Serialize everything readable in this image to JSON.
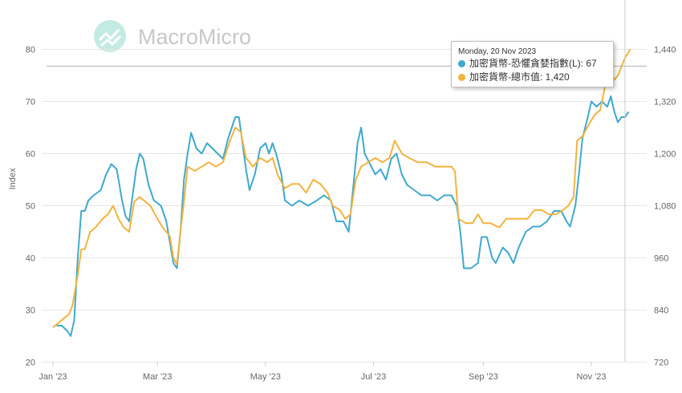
{
  "watermark": {
    "brand": "MacroMicro",
    "logo_icon": "macromicro-logo-icon"
  },
  "colors": {
    "fear_greed": "#3fa9cf",
    "market_cap": "#f2b33d",
    "grid": "#e6e6e6",
    "crosshair": "#cccccc",
    "logo": "#b9e6dd"
  },
  "tooltip": {
    "date": "Monday, 20 Nov 2023",
    "rows": [
      {
        "label": "加密貨幣-恐懼貪婪指數(L): 67",
        "color": "#3fa9cf"
      },
      {
        "label": "加密貨幣-總市值: 1,420",
        "color": "#f2b33d"
      }
    ]
  },
  "chart_data": {
    "type": "line",
    "title": "",
    "xlabel": "",
    "ylabel": "Index",
    "x_range": [
      "2023-01-01",
      "2023-11-23"
    ],
    "x_ticks": [
      {
        "date": "2023-01-01",
        "label": "Jan '23"
      },
      {
        "date": "2023-03-01",
        "label": "Mar '23"
      },
      {
        "date": "2023-05-01",
        "label": "May '23"
      },
      {
        "date": "2023-07-01",
        "label": "Jul '23"
      },
      {
        "date": "2023-09-01",
        "label": "Sep '23"
      },
      {
        "date": "2023-11-01",
        "label": "Nov '23"
      }
    ],
    "y_left": {
      "min": 20,
      "max": 80,
      "ticks": [
        20,
        30,
        40,
        50,
        60,
        70,
        80
      ]
    },
    "y_right": {
      "min": 720,
      "max": 1440,
      "ticks": [
        720,
        840,
        960,
        1080,
        1200,
        1320,
        1440
      ]
    },
    "grid": true,
    "crosshair_date": "2023-11-20",
    "crosshair_value": 1420,
    "series": [
      {
        "name": "加密貨幣-恐懼貪婪指數(L)",
        "axis": "left",
        "color": "#3fa9cf",
        "points": [
          [
            "2023-01-03",
            27
          ],
          [
            "2023-01-06",
            27
          ],
          [
            "2023-01-09",
            26
          ],
          [
            "2023-01-11",
            25
          ],
          [
            "2023-01-13",
            28
          ],
          [
            "2023-01-15",
            40
          ],
          [
            "2023-01-17",
            49
          ],
          [
            "2023-01-19",
            49
          ],
          [
            "2023-01-21",
            51
          ],
          [
            "2023-01-24",
            52
          ],
          [
            "2023-01-28",
            53
          ],
          [
            "2023-01-31",
            56
          ],
          [
            "2023-02-03",
            58
          ],
          [
            "2023-02-06",
            57
          ],
          [
            "2023-02-09",
            51
          ],
          [
            "2023-02-11",
            48
          ],
          [
            "2023-02-13",
            47
          ],
          [
            "2023-02-15",
            52
          ],
          [
            "2023-02-17",
            57
          ],
          [
            "2023-02-19",
            60
          ],
          [
            "2023-02-21",
            59
          ],
          [
            "2023-02-24",
            54
          ],
          [
            "2023-02-27",
            51
          ],
          [
            "2023-03-03",
            50
          ],
          [
            "2023-03-06",
            47
          ],
          [
            "2023-03-08",
            43
          ],
          [
            "2023-03-10",
            39
          ],
          [
            "2023-03-12",
            38
          ],
          [
            "2023-03-14",
            45
          ],
          [
            "2023-03-16",
            55
          ],
          [
            "2023-03-18",
            60
          ],
          [
            "2023-03-20",
            64
          ],
          [
            "2023-03-23",
            61
          ],
          [
            "2023-03-26",
            60
          ],
          [
            "2023-03-29",
            62
          ],
          [
            "2023-04-01",
            61
          ],
          [
            "2023-04-04",
            60
          ],
          [
            "2023-04-07",
            59
          ],
          [
            "2023-04-10",
            63
          ],
          [
            "2023-04-12",
            65
          ],
          [
            "2023-04-14",
            67
          ],
          [
            "2023-04-16",
            67
          ],
          [
            "2023-04-18",
            62
          ],
          [
            "2023-04-20",
            57
          ],
          [
            "2023-04-22",
            53
          ],
          [
            "2023-04-25",
            56
          ],
          [
            "2023-04-28",
            61
          ],
          [
            "2023-05-01",
            62
          ],
          [
            "2023-05-03",
            60
          ],
          [
            "2023-05-05",
            62
          ],
          [
            "2023-05-07",
            60
          ],
          [
            "2023-05-10",
            56
          ],
          [
            "2023-05-12",
            51
          ],
          [
            "2023-05-16",
            50
          ],
          [
            "2023-05-20",
            51
          ],
          [
            "2023-05-25",
            50
          ],
          [
            "2023-05-30",
            51
          ],
          [
            "2023-06-03",
            52
          ],
          [
            "2023-06-07",
            51
          ],
          [
            "2023-06-10",
            47
          ],
          [
            "2023-06-14",
            47
          ],
          [
            "2023-06-17",
            45
          ],
          [
            "2023-06-20",
            55
          ],
          [
            "2023-06-22",
            62
          ],
          [
            "2023-06-24",
            65
          ],
          [
            "2023-06-26",
            60
          ],
          [
            "2023-06-29",
            58
          ],
          [
            "2023-07-02",
            56
          ],
          [
            "2023-07-05",
            57
          ],
          [
            "2023-07-08",
            55
          ],
          [
            "2023-07-11",
            59
          ],
          [
            "2023-07-14",
            60
          ],
          [
            "2023-07-17",
            56
          ],
          [
            "2023-07-20",
            54
          ],
          [
            "2023-07-24",
            53
          ],
          [
            "2023-07-28",
            52
          ],
          [
            "2023-08-02",
            52
          ],
          [
            "2023-08-06",
            51
          ],
          [
            "2023-08-10",
            52
          ],
          [
            "2023-08-14",
            52
          ],
          [
            "2023-08-17",
            50
          ],
          [
            "2023-08-19",
            45
          ],
          [
            "2023-08-21",
            38
          ],
          [
            "2023-08-25",
            38
          ],
          [
            "2023-08-29",
            39
          ],
          [
            "2023-08-31",
            44
          ],
          [
            "2023-09-03",
            44
          ],
          [
            "2023-09-06",
            40
          ],
          [
            "2023-09-08",
            39
          ],
          [
            "2023-09-12",
            42
          ],
          [
            "2023-09-15",
            41
          ],
          [
            "2023-09-18",
            39
          ],
          [
            "2023-09-21",
            42
          ],
          [
            "2023-09-25",
            45
          ],
          [
            "2023-09-29",
            46
          ],
          [
            "2023-10-03",
            46
          ],
          [
            "2023-10-07",
            47
          ],
          [
            "2023-10-11",
            49
          ],
          [
            "2023-10-15",
            49
          ],
          [
            "2023-10-18",
            47
          ],
          [
            "2023-10-20",
            46
          ],
          [
            "2023-10-23",
            50
          ],
          [
            "2023-10-25",
            56
          ],
          [
            "2023-10-27",
            63
          ],
          [
            "2023-10-30",
            67
          ],
          [
            "2023-11-01",
            70
          ],
          [
            "2023-11-04",
            69
          ],
          [
            "2023-11-07",
            70
          ],
          [
            "2023-11-10",
            69
          ],
          [
            "2023-11-12",
            71
          ],
          [
            "2023-11-14",
            68
          ],
          [
            "2023-11-16",
            66
          ],
          [
            "2023-11-18",
            67
          ],
          [
            "2023-11-20",
            67
          ],
          [
            "2023-11-22",
            68
          ]
        ]
      },
      {
        "name": "加密貨幣-總市值",
        "axis": "right",
        "color": "#f2b33d",
        "points": [
          [
            "2023-01-01",
            800
          ],
          [
            "2023-01-04",
            810
          ],
          [
            "2023-01-07",
            820
          ],
          [
            "2023-01-10",
            830
          ],
          [
            "2023-01-12",
            850
          ],
          [
            "2023-01-15",
            920
          ],
          [
            "2023-01-17",
            980
          ],
          [
            "2023-01-19",
            980
          ],
          [
            "2023-01-22",
            1020
          ],
          [
            "2023-01-25",
            1030
          ],
          [
            "2023-01-29",
            1050
          ],
          [
            "2023-02-01",
            1060
          ],
          [
            "2023-02-04",
            1080
          ],
          [
            "2023-02-07",
            1050
          ],
          [
            "2023-02-10",
            1030
          ],
          [
            "2023-02-13",
            1020
          ],
          [
            "2023-02-16",
            1090
          ],
          [
            "2023-02-19",
            1100
          ],
          [
            "2023-02-22",
            1090
          ],
          [
            "2023-02-25",
            1080
          ],
          [
            "2023-03-01",
            1050
          ],
          [
            "2023-03-04",
            1030
          ],
          [
            "2023-03-08",
            1010
          ],
          [
            "2023-03-10",
            960
          ],
          [
            "2023-03-12",
            945
          ],
          [
            "2023-03-14",
            1020
          ],
          [
            "2023-03-16",
            1090
          ],
          [
            "2023-03-18",
            1170
          ],
          [
            "2023-03-22",
            1160
          ],
          [
            "2023-03-26",
            1170
          ],
          [
            "2023-03-30",
            1180
          ],
          [
            "2023-04-03",
            1170
          ],
          [
            "2023-04-07",
            1180
          ],
          [
            "2023-04-11",
            1230
          ],
          [
            "2023-04-14",
            1260
          ],
          [
            "2023-04-17",
            1250
          ],
          [
            "2023-04-20",
            1190
          ],
          [
            "2023-04-24",
            1170
          ],
          [
            "2023-04-28",
            1190
          ],
          [
            "2023-05-02",
            1180
          ],
          [
            "2023-05-05",
            1190
          ],
          [
            "2023-05-08",
            1150
          ],
          [
            "2023-05-12",
            1120
          ],
          [
            "2023-05-16",
            1130
          ],
          [
            "2023-05-20",
            1130
          ],
          [
            "2023-05-24",
            1110
          ],
          [
            "2023-05-28",
            1140
          ],
          [
            "2023-06-01",
            1130
          ],
          [
            "2023-06-05",
            1110
          ],
          [
            "2023-06-08",
            1080
          ],
          [
            "2023-06-12",
            1070
          ],
          [
            "2023-06-15",
            1050
          ],
          [
            "2023-06-18",
            1060
          ],
          [
            "2023-06-21",
            1140
          ],
          [
            "2023-06-24",
            1170
          ],
          [
            "2023-06-28",
            1180
          ],
          [
            "2023-07-02",
            1190
          ],
          [
            "2023-07-06",
            1180
          ],
          [
            "2023-07-10",
            1190
          ],
          [
            "2023-07-13",
            1230
          ],
          [
            "2023-07-17",
            1200
          ],
          [
            "2023-07-21",
            1190
          ],
          [
            "2023-07-26",
            1180
          ],
          [
            "2023-07-31",
            1180
          ],
          [
            "2023-08-05",
            1170
          ],
          [
            "2023-08-10",
            1170
          ],
          [
            "2023-08-14",
            1170
          ],
          [
            "2023-08-16",
            1160
          ],
          [
            "2023-08-18",
            1050
          ],
          [
            "2023-08-22",
            1040
          ],
          [
            "2023-08-26",
            1040
          ],
          [
            "2023-08-29",
            1060
          ],
          [
            "2023-09-01",
            1040
          ],
          [
            "2023-09-05",
            1040
          ],
          [
            "2023-09-10",
            1030
          ],
          [
            "2023-09-14",
            1050
          ],
          [
            "2023-09-18",
            1050
          ],
          [
            "2023-09-22",
            1050
          ],
          [
            "2023-09-26",
            1050
          ],
          [
            "2023-09-30",
            1070
          ],
          [
            "2023-10-04",
            1070
          ],
          [
            "2023-10-08",
            1060
          ],
          [
            "2023-10-12",
            1060
          ],
          [
            "2023-10-16",
            1070
          ],
          [
            "2023-10-19",
            1080
          ],
          [
            "2023-10-22",
            1100
          ],
          [
            "2023-10-24",
            1230
          ],
          [
            "2023-10-27",
            1240
          ],
          [
            "2023-10-31",
            1270
          ],
          [
            "2023-11-03",
            1290
          ],
          [
            "2023-11-06",
            1300
          ],
          [
            "2023-11-09",
            1360
          ],
          [
            "2023-11-11",
            1390
          ],
          [
            "2023-11-14",
            1370
          ],
          [
            "2023-11-16",
            1380
          ],
          [
            "2023-11-18",
            1400
          ],
          [
            "2023-11-20",
            1420
          ],
          [
            "2023-11-23",
            1440
          ]
        ]
      }
    ]
  }
}
